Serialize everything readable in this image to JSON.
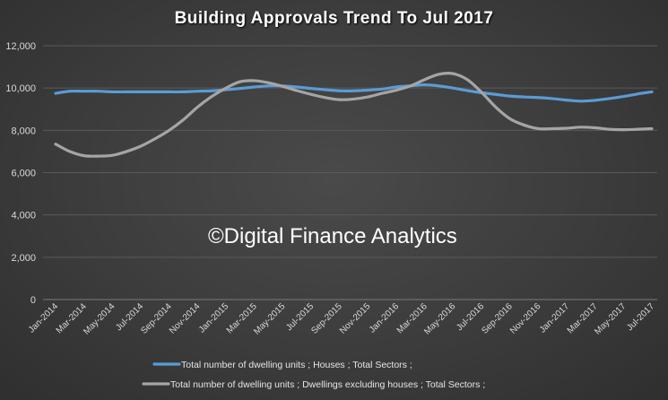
{
  "chart_data": {
    "type": "line",
    "title": "Building Approvals Trend To Jul 2017",
    "watermark": "©Digital Finance Analytics",
    "ylim": [
      0,
      12000
    ],
    "yticks": [
      "0",
      "2,000",
      "4,000",
      "6,000",
      "8,000",
      "10,000",
      "12,000"
    ],
    "grid": true,
    "legend_position": "bottom",
    "x": [
      "Jan-2014",
      "Feb-2014",
      "Mar-2014",
      "Apr-2014",
      "May-2014",
      "Jun-2014",
      "Jul-2014",
      "Aug-2014",
      "Sep-2014",
      "Oct-2014",
      "Nov-2014",
      "Dec-2014",
      "Jan-2015",
      "Feb-2015",
      "Mar-2015",
      "Apr-2015",
      "May-2015",
      "Jun-2015",
      "Jul-2015",
      "Aug-2015",
      "Sep-2015",
      "Oct-2015",
      "Nov-2015",
      "Dec-2015",
      "Jan-2016",
      "Feb-2016",
      "Mar-2016",
      "Apr-2016",
      "May-2016",
      "Jun-2016",
      "Jul-2016",
      "Aug-2016",
      "Sep-2016",
      "Oct-2016",
      "Nov-2016",
      "Dec-2016",
      "Jan-2017",
      "Feb-2017",
      "Mar-2017",
      "Apr-2017",
      "May-2017",
      "Jun-2017",
      "Jul-2017"
    ],
    "x_tick_labels": [
      "Jan-2014",
      "Mar-2014",
      "May-2014",
      "Jul-2014",
      "Sep-2014",
      "Nov-2014",
      "Jan-2015",
      "Mar-2015",
      "May-2015",
      "Jul-2015",
      "Sep-2015",
      "Nov-2015",
      "Jan-2016",
      "Mar-2016",
      "May-2016",
      "Jul-2016",
      "Sep-2016",
      "Nov-2016",
      "Jan-2017",
      "Mar-2017",
      "May-2017",
      "Jul-2017"
    ],
    "series": [
      {
        "name": "Total number of dwelling units ;  Houses ;  Total Sectors ;",
        "color": "#5b9bd5",
        "values": [
          9750,
          9850,
          9850,
          9850,
          9820,
          9820,
          9820,
          9820,
          9820,
          9820,
          9850,
          9870,
          9920,
          9980,
          10050,
          10100,
          10100,
          10050,
          9980,
          9920,
          9870,
          9870,
          9900,
          9950,
          10050,
          10100,
          10150,
          10100,
          10000,
          9880,
          9780,
          9700,
          9620,
          9580,
          9550,
          9500,
          9430,
          9380,
          9420,
          9500,
          9600,
          9720,
          9820
        ]
      },
      {
        "name": "Total number of dwelling units ;  Dwellings excluding houses ;  Total Sectors ;",
        "color": "#a5a5a5",
        "values": [
          7350,
          7000,
          6800,
          6780,
          6820,
          7000,
          7250,
          7600,
          8000,
          8500,
          9100,
          9600,
          10000,
          10300,
          10350,
          10250,
          10080,
          9880,
          9700,
          9550,
          9450,
          9480,
          9580,
          9750,
          9900,
          10100,
          10400,
          10650,
          10680,
          10400,
          9800,
          9100,
          8550,
          8250,
          8080,
          8080,
          8100,
          8150,
          8120,
          8050,
          8030,
          8050,
          8080
        ]
      }
    ]
  }
}
